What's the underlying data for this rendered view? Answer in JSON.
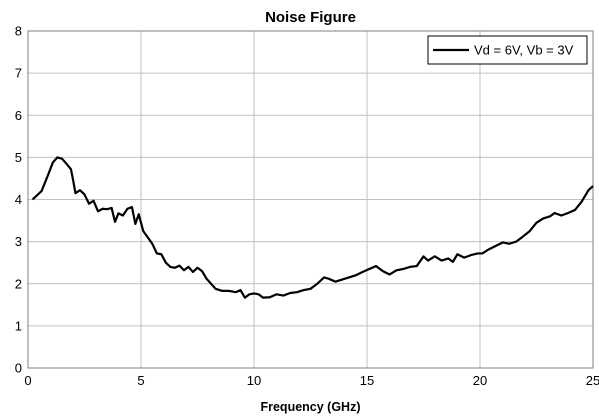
{
  "chart_data": {
    "type": "line",
    "title": "Noise Figure",
    "xlabel": "Frequency (GHz)",
    "ylabel": "",
    "xlim": [
      0,
      25
    ],
    "ylim": [
      0,
      8
    ],
    "x_ticks": [
      0,
      5,
      10,
      15,
      20,
      25
    ],
    "y_ticks": [
      0,
      1,
      2,
      3,
      4,
      5,
      6,
      7,
      8
    ],
    "grid": true,
    "legend_position": "top-right",
    "series": [
      {
        "name": "Vd = 6V, Vb = 3V",
        "color": "#000000",
        "points": [
          [
            0.2,
            4.0
          ],
          [
            0.6,
            4.2
          ],
          [
            0.9,
            4.6
          ],
          [
            1.1,
            4.88
          ],
          [
            1.3,
            5.0
          ],
          [
            1.5,
            4.97
          ],
          [
            1.7,
            4.85
          ],
          [
            1.9,
            4.72
          ],
          [
            2.0,
            4.45
          ],
          [
            2.1,
            4.15
          ],
          [
            2.3,
            4.22
          ],
          [
            2.5,
            4.12
          ],
          [
            2.7,
            3.9
          ],
          [
            2.9,
            3.97
          ],
          [
            3.1,
            3.72
          ],
          [
            3.3,
            3.78
          ],
          [
            3.5,
            3.77
          ],
          [
            3.7,
            3.8
          ],
          [
            3.85,
            3.47
          ],
          [
            4.0,
            3.67
          ],
          [
            4.2,
            3.62
          ],
          [
            4.4,
            3.78
          ],
          [
            4.6,
            3.82
          ],
          [
            4.75,
            3.42
          ],
          [
            4.9,
            3.65
          ],
          [
            5.1,
            3.25
          ],
          [
            5.3,
            3.1
          ],
          [
            5.5,
            2.95
          ],
          [
            5.7,
            2.72
          ],
          [
            5.9,
            2.7
          ],
          [
            6.1,
            2.5
          ],
          [
            6.3,
            2.4
          ],
          [
            6.5,
            2.38
          ],
          [
            6.7,
            2.43
          ],
          [
            6.9,
            2.32
          ],
          [
            7.1,
            2.4
          ],
          [
            7.3,
            2.28
          ],
          [
            7.5,
            2.38
          ],
          [
            7.7,
            2.3
          ],
          [
            7.9,
            2.12
          ],
          [
            8.1,
            2.0
          ],
          [
            8.3,
            1.88
          ],
          [
            8.6,
            1.83
          ],
          [
            8.9,
            1.83
          ],
          [
            9.2,
            1.8
          ],
          [
            9.4,
            1.85
          ],
          [
            9.6,
            1.67
          ],
          [
            9.8,
            1.75
          ],
          [
            10.0,
            1.77
          ],
          [
            10.2,
            1.75
          ],
          [
            10.4,
            1.67
          ],
          [
            10.7,
            1.68
          ],
          [
            11.0,
            1.75
          ],
          [
            11.3,
            1.72
          ],
          [
            11.6,
            1.78
          ],
          [
            11.9,
            1.8
          ],
          [
            12.2,
            1.85
          ],
          [
            12.5,
            1.88
          ],
          [
            12.8,
            2.0
          ],
          [
            13.1,
            2.15
          ],
          [
            13.3,
            2.12
          ],
          [
            13.6,
            2.05
          ],
          [
            13.9,
            2.1
          ],
          [
            14.2,
            2.15
          ],
          [
            14.5,
            2.2
          ],
          [
            14.8,
            2.28
          ],
          [
            15.1,
            2.35
          ],
          [
            15.4,
            2.42
          ],
          [
            15.7,
            2.3
          ],
          [
            16.0,
            2.22
          ],
          [
            16.3,
            2.32
          ],
          [
            16.6,
            2.35
          ],
          [
            16.9,
            2.4
          ],
          [
            17.2,
            2.42
          ],
          [
            17.5,
            2.65
          ],
          [
            17.7,
            2.55
          ],
          [
            18.0,
            2.65
          ],
          [
            18.3,
            2.55
          ],
          [
            18.6,
            2.6
          ],
          [
            18.8,
            2.52
          ],
          [
            19.0,
            2.7
          ],
          [
            19.3,
            2.62
          ],
          [
            19.6,
            2.68
          ],
          [
            19.9,
            2.72
          ],
          [
            20.1,
            2.72
          ],
          [
            20.4,
            2.82
          ],
          [
            20.7,
            2.9
          ],
          [
            21.0,
            2.98
          ],
          [
            21.3,
            2.95
          ],
          [
            21.6,
            3.0
          ],
          [
            21.9,
            3.12
          ],
          [
            22.2,
            3.25
          ],
          [
            22.5,
            3.45
          ],
          [
            22.8,
            3.55
          ],
          [
            23.1,
            3.6
          ],
          [
            23.3,
            3.68
          ],
          [
            23.6,
            3.62
          ],
          [
            23.9,
            3.68
          ],
          [
            24.2,
            3.75
          ],
          [
            24.5,
            3.95
          ],
          [
            24.8,
            4.22
          ],
          [
            25.0,
            4.32
          ]
        ]
      }
    ]
  }
}
